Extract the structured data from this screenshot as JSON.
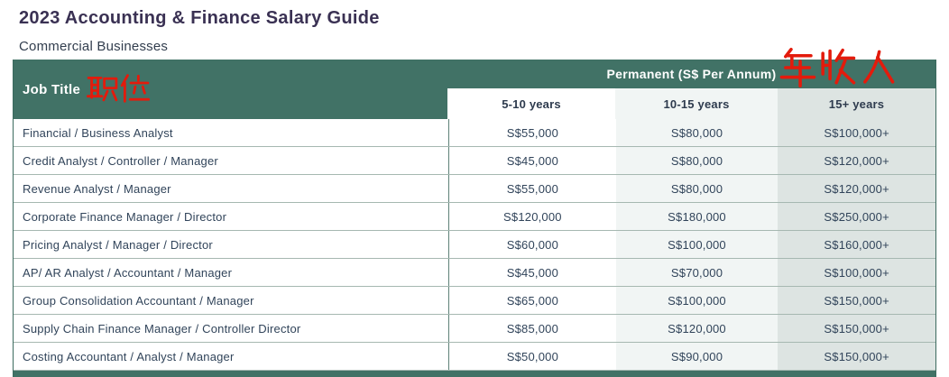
{
  "page": {
    "title": "2023 Accounting & Finance Salary Guide",
    "subtitle": "Commercial Businesses"
  },
  "annotations": {
    "job_title_cn": "职位",
    "income_cn": "年收入",
    "annotation_color": "#e31b0c"
  },
  "table": {
    "job_title_header": "Job Title",
    "group_header": "Permanent (S$ Per Annum)",
    "experience_columns": [
      "5-10 years",
      "10-15 years",
      "15+ years"
    ],
    "rows": [
      {
        "job_title": "Financial / Business Analyst",
        "values": [
          "S$55,000",
          "S$80,000",
          "S$100,000+"
        ]
      },
      {
        "job_title": "Credit Analyst / Controller / Manager",
        "values": [
          "S$45,000",
          "S$80,000",
          "S$120,000+"
        ]
      },
      {
        "job_title": "Revenue Analyst / Manager",
        "values": [
          "S$55,000",
          "S$80,000",
          "S$120,000+"
        ]
      },
      {
        "job_title": "Corporate Finance Manager / Director",
        "values": [
          "S$120,000",
          "S$180,000",
          "S$250,000+"
        ]
      },
      {
        "job_title": "Pricing Analyst / Manager / Director",
        "values": [
          "S$60,000",
          "S$100,000",
          "S$160,000+"
        ]
      },
      {
        "job_title": "AP/ AR Analyst / Accountant / Manager",
        "values": [
          "S$45,000",
          "S$70,000",
          "S$100,000+"
        ]
      },
      {
        "job_title": "Group Consolidation Accountant / Manager",
        "values": [
          "S$65,000",
          "S$100,000",
          "S$150,000+"
        ]
      },
      {
        "job_title": "Supply Chain Finance Manager / Controller Director",
        "values": [
          "S$85,000",
          "S$120,000",
          "S$150,000+"
        ]
      },
      {
        "job_title": "Costing Accountant / Analyst / Manager",
        "values": [
          "S$50,000",
          "S$90,000",
          "S$150,000+"
        ]
      }
    ]
  },
  "colors": {
    "header_green": "#417266",
    "column_tint_light": "#f1f5f4",
    "column_tint_gray": "#dde4e2",
    "row_divider": "#a6b8b1",
    "outer_border": "#3c6b5f",
    "title_text": "#3a3153",
    "body_text": "#31445a"
  }
}
